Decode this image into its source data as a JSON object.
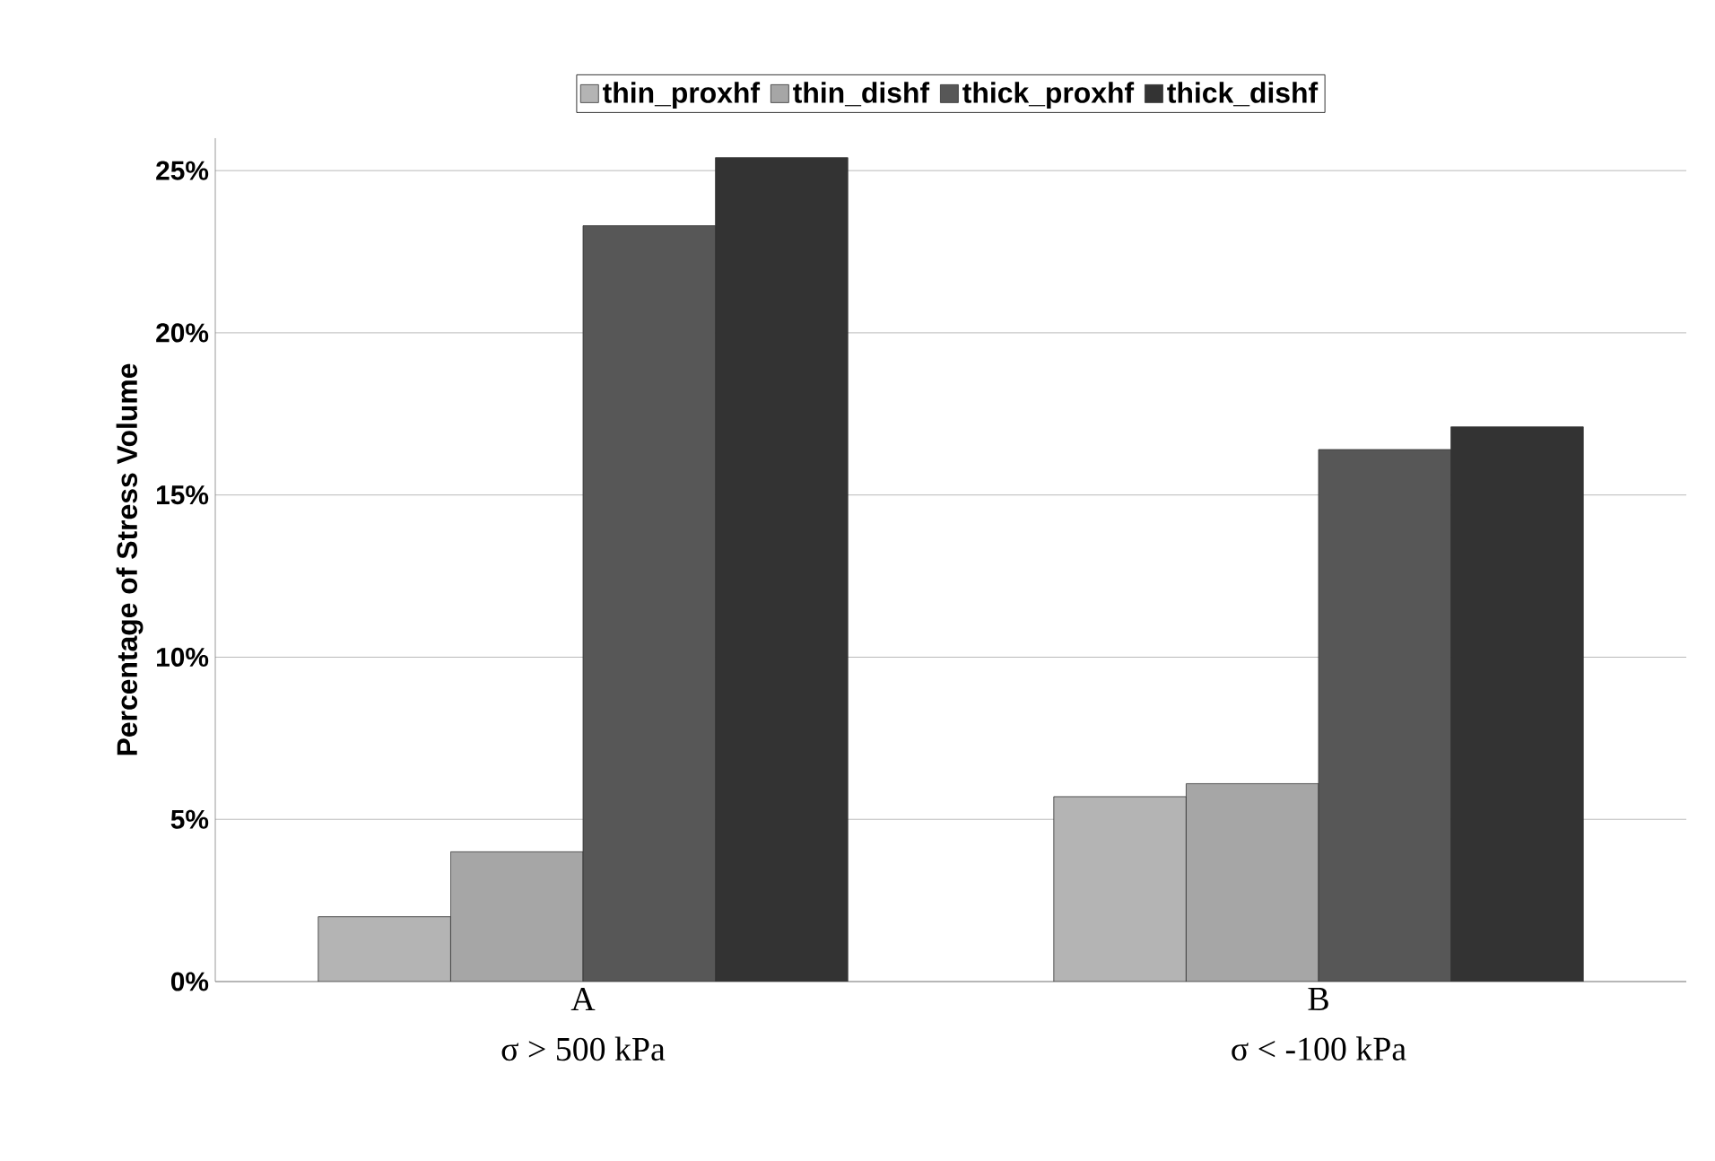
{
  "chart_data": {
    "type": "bar",
    "ylabel": "Percentage of Stress Volume",
    "categories": [
      "A",
      "B"
    ],
    "annotations": [
      "σ > 500 kPa",
      "σ < -100 kPa"
    ],
    "series": [
      {
        "name": "thin_proxhf",
        "color": "#b4b4b4",
        "values": [
          2.0,
          5.7
        ]
      },
      {
        "name": "thin_dishf",
        "color": "#a6a6a6",
        "values": [
          4.0,
          6.1
        ]
      },
      {
        "name": "thick_proxhf",
        "color": "#575757",
        "values": [
          23.3,
          16.4
        ]
      },
      {
        "name": "thick_dishf",
        "color": "#333333",
        "values": [
          25.4,
          17.1
        ]
      }
    ],
    "ylim": [
      0,
      26
    ],
    "yticks": [
      {
        "value": 0,
        "label": "0%"
      },
      {
        "value": 5,
        "label": "5%"
      },
      {
        "value": 10,
        "label": "10%"
      },
      {
        "value": 15,
        "label": "15%"
      },
      {
        "value": 20,
        "label": "20%"
      },
      {
        "value": 25,
        "label": "25%"
      }
    ],
    "grid": "y",
    "legend": "top"
  }
}
